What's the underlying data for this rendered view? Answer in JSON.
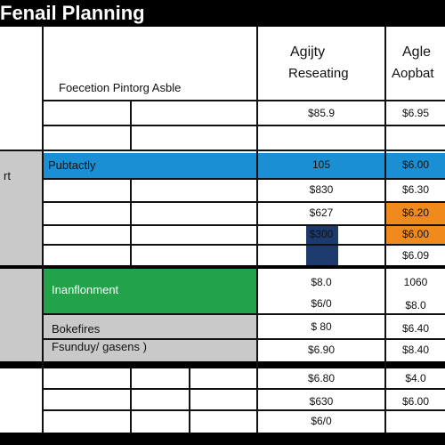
{
  "header": {
    "title": "Fenail Planning"
  },
  "columns": {
    "function_header": "Foecetion Pintorg Asble",
    "col1_header_line1": "Agijty",
    "col1_header_line2": "Reseating",
    "col2_header_line1": "Agle",
    "col2_header_line2": "Aopbat"
  },
  "sections": {
    "section_a_label": "Pubtactly",
    "section_b_label": "Inanflonment",
    "section_c_title": "Bokefires",
    "section_c_subtitle": "Fsunduy/ gasens )",
    "side_label": "rt"
  },
  "values": {
    "col1": [
      "$85.9",
      "105",
      "$830",
      "$627",
      "$300",
      "$8.0",
      "$6/0",
      "$ 80",
      "$6.90",
      "$6.80",
      "$630",
      "$6/0"
    ],
    "col2": [
      "$6.95",
      "$6.00",
      "$6.30",
      "$6.20",
      "$6.00",
      "$6.09",
      "1060",
      "$8.0",
      "$6.40",
      "$8.40",
      "$4.0",
      "$6.00"
    ]
  },
  "colors": {
    "blue": "#1b8fd4",
    "green": "#22a34a",
    "orange": "#f08a1c",
    "navy": "#1d3a6e",
    "gray": "#c9c9c9",
    "black": "#000000"
  }
}
